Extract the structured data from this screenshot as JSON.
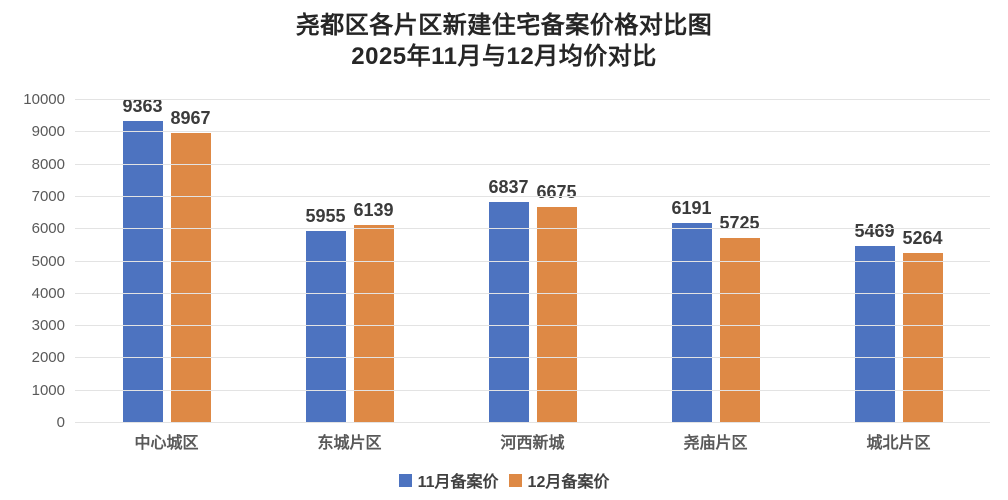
{
  "title": {
    "line1": "尧都区各片区新建住宅备案价格对比图",
    "line2": "2025年11月与12月均价对比"
  },
  "chart_data": {
    "type": "bar",
    "title": "尧都区各片区新建住宅备案价格对比图 2025年11月与12月均价对比",
    "categories": [
      "中心城区",
      "东城片区",
      "河西新城",
      "尧庙片区",
      "城北片区"
    ],
    "series": [
      {
        "name": "11月备案价",
        "color": "#4d73c0",
        "values": [
          9363,
          5955,
          6837,
          6191,
          5469
        ]
      },
      {
        "name": "12月备案价",
        "color": "#de8945",
        "values": [
          8967,
          6139,
          6675,
          5725,
          5264
        ]
      }
    ],
    "xlabel": "",
    "ylabel": "",
    "ylim": [
      0,
      10000
    ],
    "ytick_step": 1000,
    "ytick_labels": [
      "0",
      "1000",
      "2000",
      "3000",
      "4000",
      "5000",
      "6000",
      "7000",
      "8000",
      "9000",
      "10000"
    ],
    "grid": true,
    "legend_position": "bottom",
    "data_labels": true
  }
}
